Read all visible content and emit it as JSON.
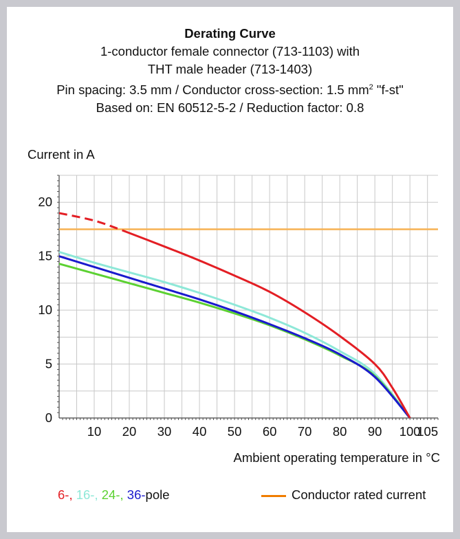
{
  "chart_data": {
    "type": "line",
    "title": "Derating Curve",
    "subtitle_lines": [
      "1-conductor female connector (713-1103) with",
      "THT male header (713-1403)",
      "Pin spacing: 3.5 mm / Conductor cross-section: 1.5 mm",
      "Based on: EN 60512-5-2 / Reduction factor: 0.8"
    ],
    "subtitle_sup": "2",
    "subtitle_suffix": " \"f-st\"",
    "ylabel": "Current in A",
    "xlabel": "Ambient operating temperature in °C",
    "xlim": [
      0,
      108
    ],
    "ylim": [
      0,
      22.5
    ],
    "xticks": [
      10,
      20,
      30,
      40,
      50,
      60,
      70,
      80,
      90,
      100,
      105
    ],
    "yticks": [
      0,
      5,
      10,
      15,
      20
    ],
    "grid": true,
    "series": [
      {
        "name": "6-",
        "color": "#e31e24",
        "dashed_until_x": 18,
        "points": [
          [
            0,
            19.0
          ],
          [
            10,
            18.3
          ],
          [
            18,
            17.4
          ],
          [
            30,
            15.9
          ],
          [
            40,
            14.6
          ],
          [
            50,
            13.2
          ],
          [
            60,
            11.7
          ],
          [
            70,
            9.8
          ],
          [
            80,
            7.6
          ],
          [
            90,
            5.0
          ],
          [
            95,
            2.8
          ],
          [
            100,
            0
          ]
        ]
      },
      {
        "name": "16-",
        "color": "#8ee8d8",
        "points": [
          [
            0,
            15.4
          ],
          [
            10,
            14.4
          ],
          [
            20,
            13.5
          ],
          [
            30,
            12.6
          ],
          [
            40,
            11.6
          ],
          [
            50,
            10.5
          ],
          [
            60,
            9.3
          ],
          [
            70,
            7.9
          ],
          [
            80,
            6.2
          ],
          [
            90,
            4.1
          ],
          [
            100,
            0
          ]
        ]
      },
      {
        "name": "24-",
        "color": "#5cd132",
        "points": [
          [
            0,
            14.3
          ],
          [
            10,
            13.4
          ],
          [
            20,
            12.5
          ],
          [
            30,
            11.6
          ],
          [
            40,
            10.7
          ],
          [
            50,
            9.7
          ],
          [
            60,
            8.6
          ],
          [
            70,
            7.3
          ],
          [
            80,
            5.8
          ],
          [
            90,
            3.9
          ],
          [
            100,
            0
          ]
        ]
      },
      {
        "name": "36-",
        "color": "#1a1acd",
        "points": [
          [
            0,
            15.0
          ],
          [
            10,
            14.0
          ],
          [
            20,
            13.0
          ],
          [
            30,
            12.0
          ],
          [
            40,
            11.0
          ],
          [
            50,
            9.9
          ],
          [
            60,
            8.7
          ],
          [
            70,
            7.4
          ],
          [
            80,
            5.9
          ],
          [
            90,
            3.8
          ],
          [
            100,
            0
          ]
        ]
      }
    ],
    "reference_line": {
      "name": "Conductor rated current",
      "color": "#f7b152",
      "legend_color": "#f07d00",
      "y": 17.5
    },
    "legend": {
      "pole_suffix": "pole",
      "separator": ", "
    }
  }
}
